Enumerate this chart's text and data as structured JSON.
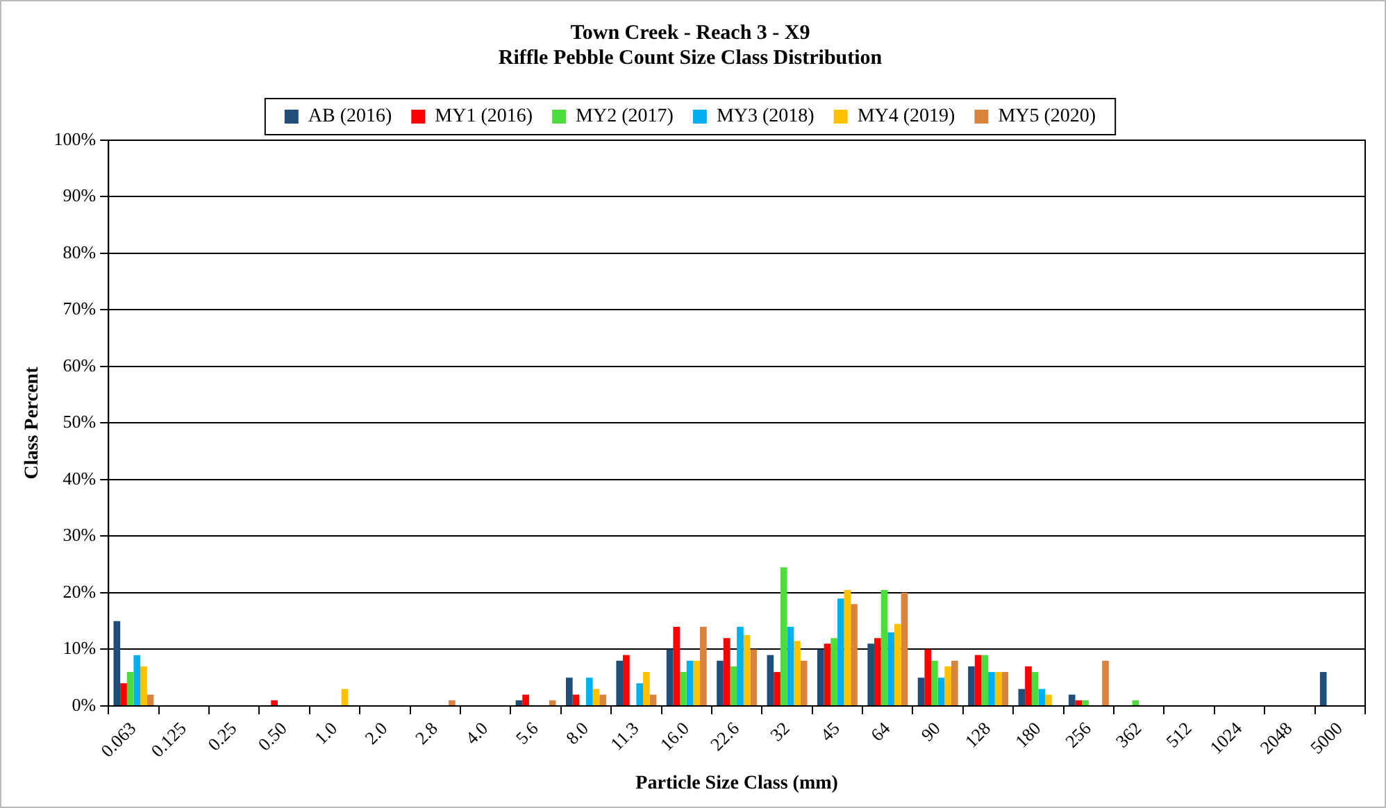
{
  "chart_data": {
    "type": "bar",
    "title": "Town Creek - Reach 3 - X9",
    "subtitle": "Riffle Pebble Count Size Class Distribution",
    "xlabel": "Particle Size Class (mm)",
    "ylabel": "Class Percent",
    "categories": [
      "0.063",
      "0.125",
      "0.25",
      "0.50",
      "1.0",
      "2.0",
      "2.8",
      "4.0",
      "5.6",
      "8.0",
      "11.3",
      "16.0",
      "22.6",
      "32",
      "45",
      "64",
      "90",
      "128",
      "180",
      "256",
      "362",
      "512",
      "1024",
      "2048",
      "5000"
    ],
    "series": [
      {
        "name": "AB (2016)",
        "color": "#1f4e79",
        "values": [
          15,
          0,
          0,
          0,
          0,
          0,
          0,
          0,
          1,
          5,
          8,
          10,
          8,
          9,
          10,
          11,
          5,
          7,
          3,
          2,
          0,
          0,
          0,
          0,
          6
        ]
      },
      {
        "name": "MY1 (2016)",
        "color": "#ff0000",
        "values": [
          4,
          0,
          0,
          1,
          0,
          0,
          0,
          0,
          2,
          2,
          9,
          14,
          12,
          6,
          11,
          12,
          10,
          9,
          7,
          1,
          0,
          0,
          0,
          0,
          0
        ]
      },
      {
        "name": "MY2 (2017)",
        "color": "#4cdc3c",
        "values": [
          6,
          0,
          0,
          0,
          0,
          0,
          0,
          0,
          0,
          0,
          0,
          6,
          7,
          24.5,
          12,
          20.5,
          8,
          9,
          6,
          1,
          1,
          0,
          0,
          0,
          0
        ]
      },
      {
        "name": "MY3 (2018)",
        "color": "#00b0f0",
        "values": [
          9,
          0,
          0,
          0,
          0,
          0,
          0,
          0,
          0,
          5,
          4,
          8,
          14,
          14,
          19,
          13,
          5,
          6,
          3,
          0,
          0,
          0,
          0,
          0,
          0
        ]
      },
      {
        "name": "MY4 (2019)",
        "color": "#ffc000",
        "values": [
          7,
          0,
          0,
          0,
          3,
          0,
          0,
          0,
          0,
          3,
          6,
          8,
          12.5,
          11.5,
          20.5,
          14.5,
          7,
          6,
          2,
          0,
          0,
          0,
          0,
          0,
          0
        ]
      },
      {
        "name": "MY5 (2020)",
        "color": "#d8843f",
        "values": [
          2,
          0,
          0,
          0,
          0,
          0,
          1,
          0,
          1,
          2,
          2,
          14,
          10,
          8,
          18,
          20,
          8,
          6,
          0,
          8,
          0,
          0,
          0,
          0,
          0
        ]
      }
    ],
    "ylim": [
      0,
      100
    ],
    "yticks": [
      {
        "value": 0,
        "label": "0%"
      },
      {
        "value": 10,
        "label": "10%"
      },
      {
        "value": 20,
        "label": "20%"
      },
      {
        "value": 30,
        "label": "30%"
      },
      {
        "value": 40,
        "label": "40%"
      },
      {
        "value": 50,
        "label": "50%"
      },
      {
        "value": 60,
        "label": "60%"
      },
      {
        "value": 70,
        "label": "70%"
      },
      {
        "value": 80,
        "label": "80%"
      },
      {
        "value": 90,
        "label": "90%"
      },
      {
        "value": 100,
        "label": "100%"
      }
    ],
    "grid": "y",
    "legend": "top"
  }
}
